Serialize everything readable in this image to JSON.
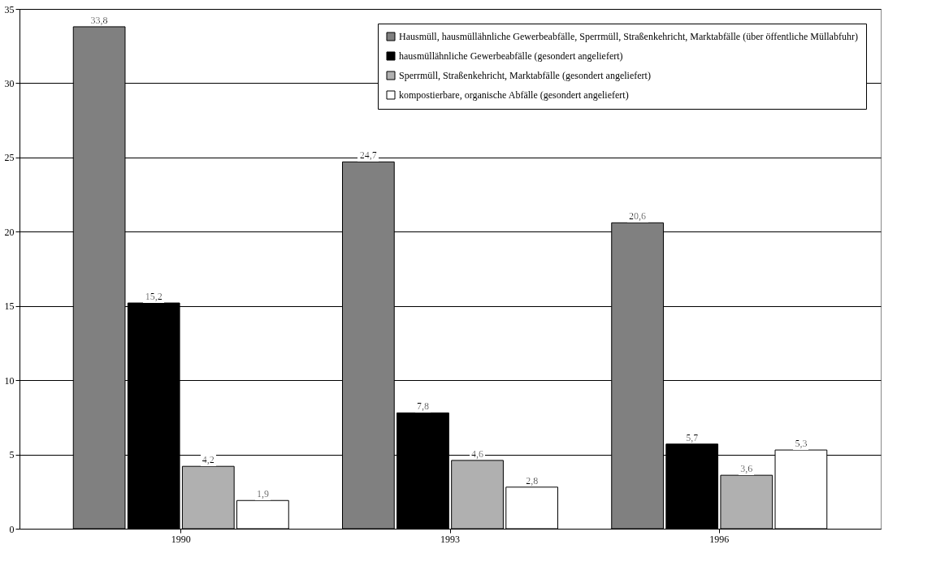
{
  "chart_data": {
    "type": "bar",
    "categories": [
      "1990",
      "1993",
      "1996"
    ],
    "series": [
      {
        "name": "Hausmüll, hausmüllähnliche Gewerbeabfälle, Sperrmüll, Straßenkehricht, Marktabfälle (über öffentliche Müllabfuhr)",
        "color": "#808080",
        "values": [
          33.8,
          24.7,
          20.6
        ],
        "value_labels": [
          "33,8",
          "24,7",
          "20,6"
        ]
      },
      {
        "name": "hausmüllähnliche Gewerbeabfälle (gesondert angeliefert)",
        "color": "#000000",
        "values": [
          15.2,
          7.8,
          5.7
        ],
        "value_labels": [
          "15,2",
          "7,8",
          "5,7"
        ]
      },
      {
        "name": "Sperrmüll, Straßenkehricht, Marktabfälle (gesondert angeliefert)",
        "color": "#b0b0b0",
        "values": [
          4.2,
          4.6,
          3.6
        ],
        "value_labels": [
          "4,2",
          "4,6",
          "3,6"
        ]
      },
      {
        "name": "kompostierbare, organische Abfälle (gesondert angeliefert)",
        "color": "#ffffff",
        "values": [
          1.9,
          2.8,
          5.3
        ],
        "value_labels": [
          "1,9",
          "2,8",
          "5,3"
        ]
      }
    ],
    "ylim": [
      0,
      35
    ],
    "yticks": [
      0,
      5,
      10,
      15,
      20,
      25,
      30,
      35
    ],
    "grid": "y",
    "legend": "top right"
  }
}
